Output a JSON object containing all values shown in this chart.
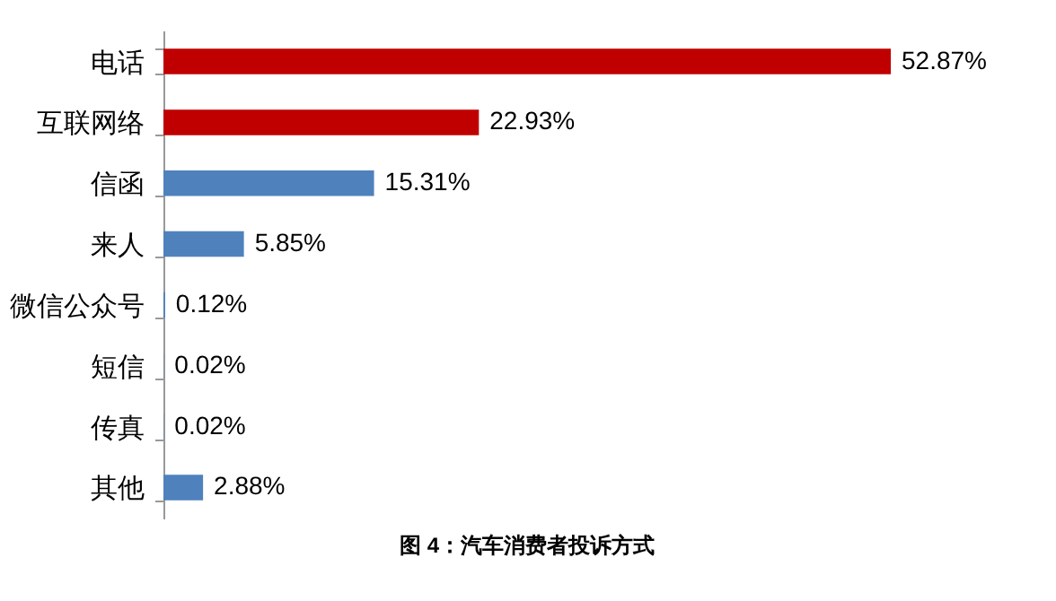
{
  "chart_data": {
    "type": "bar",
    "orientation": "horizontal",
    "categories": [
      "电话",
      "互联网络",
      "信函",
      "来人",
      "微信公众号",
      "短信",
      "传真",
      "其他"
    ],
    "values": [
      52.87,
      22.93,
      15.31,
      5.85,
      0.12,
      0.02,
      0.02,
      2.88
    ],
    "colors": [
      "#c00000",
      "#c00000",
      "#4f81bd",
      "#4f81bd",
      "#4f81bd",
      "#4f81bd",
      "#4f81bd",
      "#4f81bd"
    ],
    "value_labels": [
      "52.87%",
      "22.93%",
      "15.31%",
      "5.85%",
      "0.12%",
      "0.02%",
      "0.02%",
      "2.88%"
    ],
    "annotations": [
      "图 4：汽车消费者投诉方式"
    ]
  }
}
